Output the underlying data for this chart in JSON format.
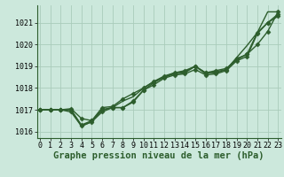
{
  "title": "Graphe pression niveau de la mer (hPa)",
  "background_color": "#cce8dc",
  "grid_color": "#aaccbb",
  "line_color": "#2d5e2d",
  "x_values": [
    0,
    1,
    2,
    3,
    4,
    5,
    6,
    7,
    8,
    9,
    10,
    11,
    12,
    13,
    14,
    15,
    16,
    17,
    18,
    19,
    20,
    21,
    22,
    23
  ],
  "series_with_markers": [
    [
      1017.0,
      1017.0,
      1017.0,
      1017.0,
      1016.3,
      1016.5,
      1017.0,
      1017.1,
      1017.1,
      1017.4,
      1017.9,
      1018.25,
      1018.5,
      1018.65,
      1018.7,
      1019.0,
      1018.7,
      1018.7,
      1018.85,
      1019.35,
      1019.55,
      1020.55,
      1021.0,
      1021.4
    ],
    [
      1017.0,
      1017.0,
      1017.0,
      1016.9,
      1016.25,
      1016.45,
      1016.9,
      1017.1,
      1017.1,
      1017.35,
      1017.9,
      1018.15,
      1018.45,
      1018.6,
      1018.65,
      1018.85,
      1018.6,
      1018.65,
      1018.8,
      1019.25,
      1019.45,
      1020.5,
      1021.0,
      1021.3
    ],
    [
      1017.0,
      1017.0,
      1017.0,
      1017.05,
      1016.6,
      1016.5,
      1017.1,
      1017.15,
      1017.5,
      1017.75,
      1018.0,
      1018.3,
      1018.55,
      1018.7,
      1018.8,
      1019.0,
      1018.7,
      1018.8,
      1018.9,
      1019.3,
      1019.55,
      1020.0,
      1020.6,
      1021.5
    ]
  ],
  "series_no_marker": [
    1017.0,
    1017.0,
    1017.0,
    1017.0,
    1016.25,
    1016.45,
    1017.0,
    1017.1,
    1017.4,
    1017.6,
    1018.0,
    1018.3,
    1018.5,
    1018.7,
    1018.75,
    1019.0,
    1018.65,
    1018.75,
    1018.85,
    1019.4,
    1019.95,
    1020.55,
    1021.5,
    1021.5
  ],
  "ylim": [
    1015.7,
    1021.8
  ],
  "yticks": [
    1016,
    1017,
    1018,
    1019,
    1020,
    1021
  ],
  "xlim": [
    -0.3,
    23.3
  ],
  "xticks": [
    0,
    1,
    2,
    3,
    4,
    5,
    6,
    7,
    8,
    9,
    10,
    11,
    12,
    13,
    14,
    15,
    16,
    17,
    18,
    19,
    20,
    21,
    22,
    23
  ],
  "marker": "D",
  "marker_size": 2.5,
  "linewidth": 1.0,
  "title_fontsize": 7.5,
  "tick_fontsize": 6.0
}
